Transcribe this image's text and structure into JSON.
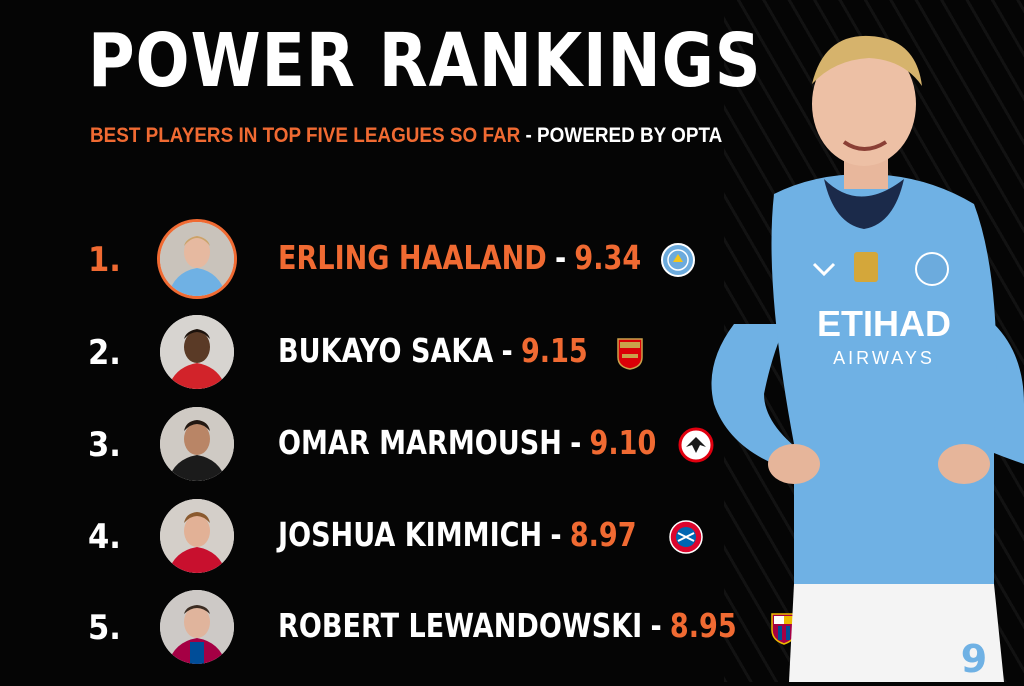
{
  "header": {
    "title": "POWER RANKINGS",
    "subtitle_highlight": "BEST PLAYERS IN TOP FIVE LEAGUES SO FAR",
    "subtitle_rest": "- POWERED BY OPTA"
  },
  "rankings": [
    {
      "rank": "1.",
      "name": "ERLING HAALAND",
      "sep": "-",
      "score": "9.34",
      "club_icon": "manchester-city-crest-icon"
    },
    {
      "rank": "2.",
      "name": "BUKAYO SAKA",
      "sep": "-",
      "score": "9.15",
      "club_icon": "arsenal-crest-icon"
    },
    {
      "rank": "3.",
      "name": "OMAR MARMOUSH",
      "sep": "-",
      "score": "9.10",
      "club_icon": "eintracht-frankfurt-crest-icon"
    },
    {
      "rank": "4.",
      "name": "JOSHUA KIMMICH",
      "sep": "-",
      "score": "8.97",
      "club_icon": "bayern-munich-crest-icon"
    },
    {
      "rank": "5.",
      "name": "ROBERT LEWANDOWSKI",
      "sep": "-",
      "score": "8.95",
      "club_icon": "barcelona-crest-icon"
    }
  ],
  "hero": {
    "sponsor_line1": "ETIHAD",
    "sponsor_line2": "AIRWAYS",
    "shirt_number": "9"
  },
  "colors": {
    "accent": "#f06a32",
    "background": "#050505",
    "shirt": "#6fb1e4"
  }
}
